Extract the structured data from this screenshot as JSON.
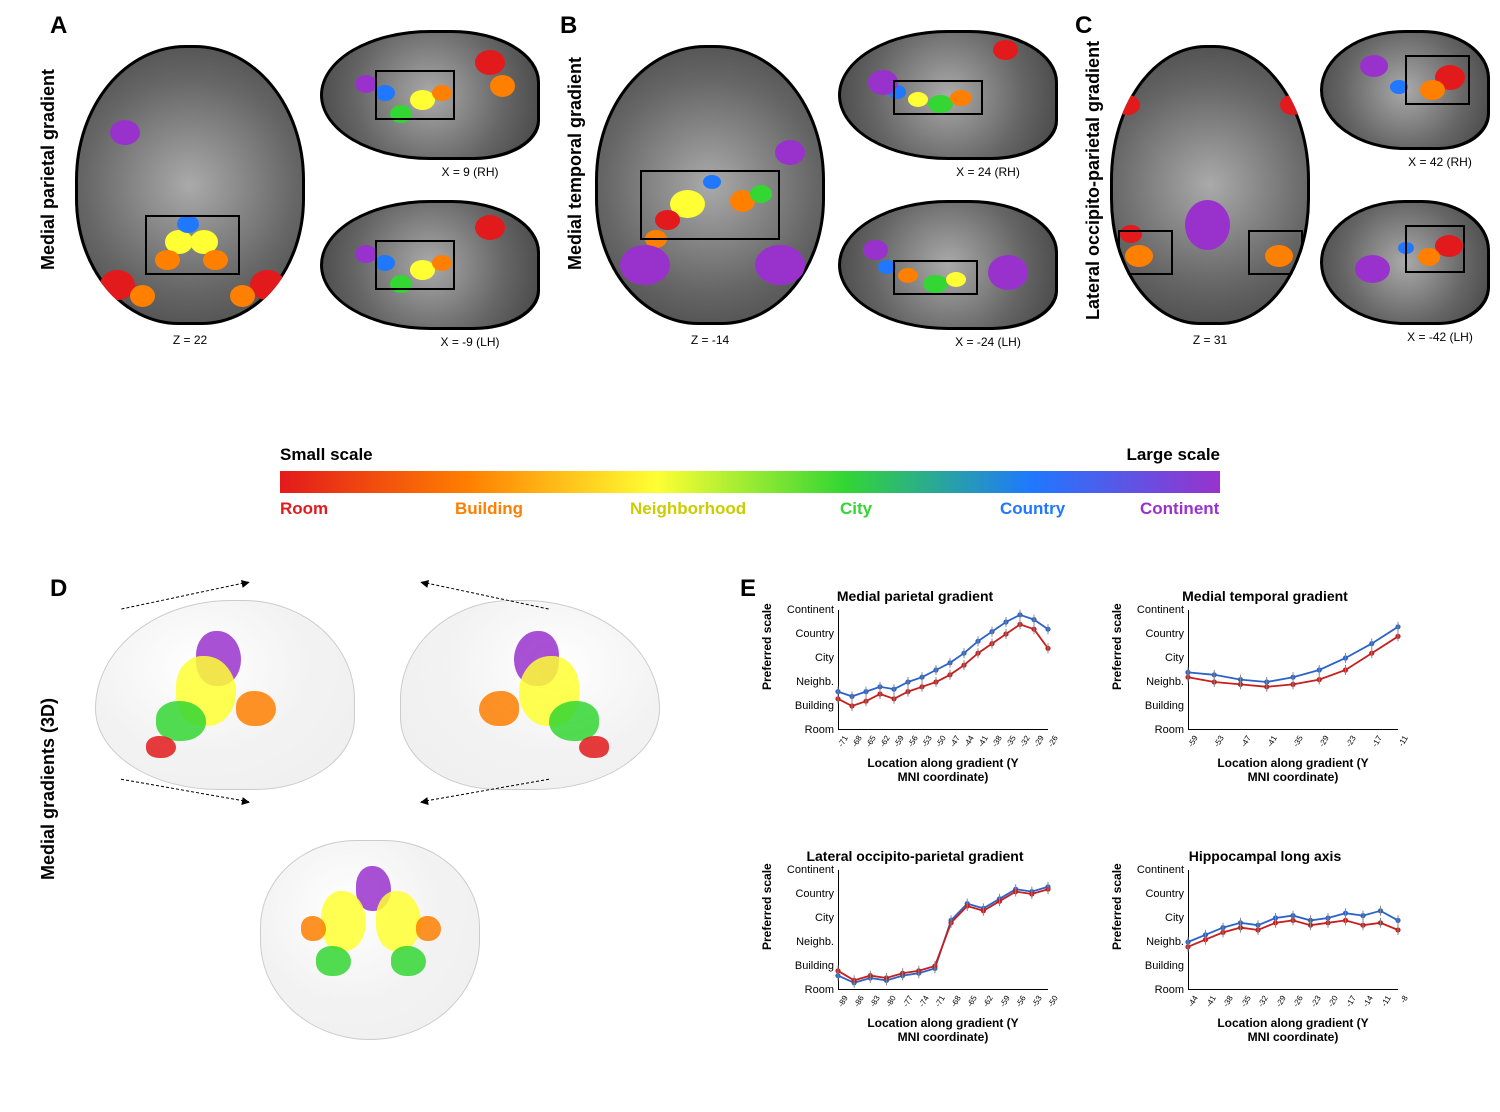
{
  "colors": {
    "room": "#e31a1c",
    "building": "#ff7f00",
    "neighborhood": "#ffff33",
    "city": "#33d633",
    "country": "#1f78ff",
    "continent": "#9932cc",
    "line_red": "#c71e1e",
    "line_blue": "#2b63c9",
    "grid": "#e0e0e0",
    "bg": "#ffffff"
  },
  "scale": {
    "left_label": "Small scale",
    "right_label": "Large scale",
    "categories": [
      "Room",
      "Building",
      "Neighborhood",
      "City",
      "Country",
      "Continent"
    ]
  },
  "panels": {
    "A": {
      "letter": "A",
      "title": "Medial parietal gradient",
      "axial_coord": "Z = 22",
      "sag_rh": "X = 9 (RH)",
      "sag_lh": "X = -9 (LH)"
    },
    "B": {
      "letter": "B",
      "title": "Medial temporal gradient",
      "axial_coord": "Z = -14",
      "sag_rh": "X = 24 (RH)",
      "sag_lh": "X = -24 (LH)"
    },
    "C": {
      "letter": "C",
      "title": "Lateral occipito-parietal gradient",
      "axial_coord": "Z = 31",
      "sag_rh": "X = 42 (RH)",
      "sag_lh": "X = -42 (LH)"
    },
    "D": {
      "letter": "D",
      "title": "Medial gradients (3D)"
    },
    "E": {
      "letter": "E"
    }
  },
  "charts": {
    "ylabel": "Preferred scale",
    "xlabel": "Location along gradient (Y\nMNI coordinate)",
    "ycats": [
      "Room",
      "Building",
      "Neighb.",
      "City",
      "Country",
      "Continent"
    ],
    "mp": {
      "title": "Medial parietal gradient",
      "xticks": [
        "-71",
        "-68",
        "-65",
        "-62",
        "-59",
        "-56",
        "-53",
        "-50",
        "-47",
        "-44",
        "-41",
        "-38",
        "-35",
        "-32",
        "-29",
        "-26"
      ],
      "red": [
        1.3,
        1.0,
        1.2,
        1.5,
        1.3,
        1.6,
        1.8,
        2.0,
        2.3,
        2.7,
        3.2,
        3.6,
        4.0,
        4.4,
        4.2,
        3.4
      ],
      "blue": [
        1.6,
        1.4,
        1.6,
        1.8,
        1.7,
        2.0,
        2.2,
        2.5,
        2.8,
        3.2,
        3.7,
        4.1,
        4.5,
        4.8,
        4.6,
        4.2
      ]
    },
    "mt": {
      "title": "Medial temporal gradient",
      "xticks": [
        "-59",
        "-53",
        "-47",
        "-41",
        "-35",
        "-29",
        "-23",
        "-17",
        "-11"
      ],
      "red": [
        2.2,
        2.0,
        1.9,
        1.8,
        1.9,
        2.1,
        2.5,
        3.2,
        3.9
      ],
      "blue": [
        2.4,
        2.3,
        2.1,
        2.0,
        2.2,
        2.5,
        3.0,
        3.6,
        4.3
      ]
    },
    "lop": {
      "title": "Lateral occipito-parietal gradient",
      "xticks": [
        "-89",
        "-86",
        "-83",
        "-80",
        "-77",
        "-74",
        "-71",
        "-68",
        "-65",
        "-62",
        "-59",
        "-56",
        "-53",
        "-50"
      ],
      "red": [
        0.8,
        0.4,
        0.6,
        0.5,
        0.7,
        0.8,
        1.0,
        2.8,
        3.5,
        3.3,
        3.7,
        4.1,
        4.0,
        4.2
      ],
      "blue": [
        0.6,
        0.3,
        0.5,
        0.4,
        0.6,
        0.7,
        0.9,
        2.9,
        3.6,
        3.4,
        3.8,
        4.2,
        4.1,
        4.3
      ]
    },
    "hip": {
      "title": "Hippocampal long axis",
      "xticks": [
        "-44",
        "-41",
        "-38",
        "-35",
        "-32",
        "-29",
        "-26",
        "-23",
        "-20",
        "-17",
        "-14",
        "-11",
        "-8"
      ],
      "red": [
        1.8,
        2.1,
        2.4,
        2.6,
        2.5,
        2.8,
        2.9,
        2.7,
        2.8,
        2.9,
        2.7,
        2.8,
        2.5
      ],
      "blue": [
        2.0,
        2.3,
        2.6,
        2.8,
        2.7,
        3.0,
        3.1,
        2.9,
        3.0,
        3.2,
        3.1,
        3.3,
        2.9
      ]
    }
  }
}
